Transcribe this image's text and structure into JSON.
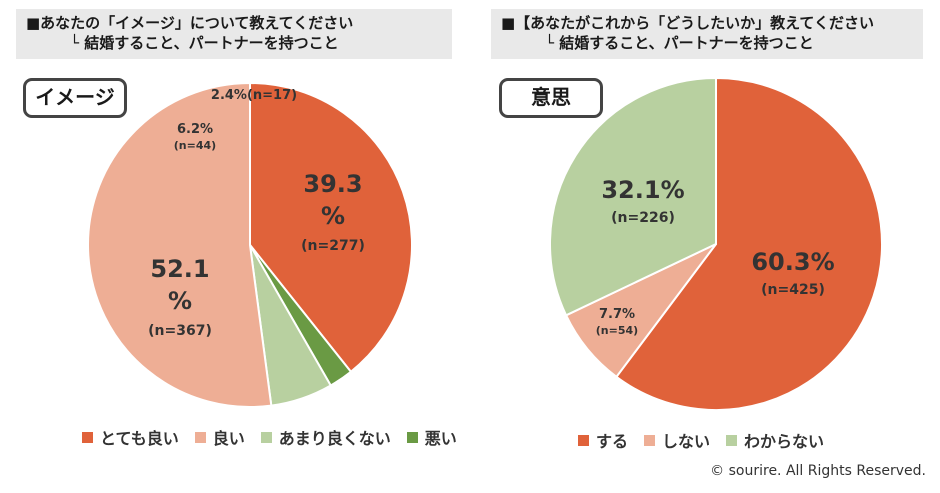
{
  "left_panel": {
    "question_line1": "■あなたの「イメージ」について教えてください",
    "question_line2": "└ 結婚すること、パートナーを持つこと",
    "tag": "イメージ"
  },
  "right_panel": {
    "question_line1": "■【あなたがこれから「どうしたいか」教えてください",
    "question_line2": "└ 結婚すること、パートナーを持つこと",
    "tag": "意思"
  },
  "copyright": "© sourire. All Rights Reserved.",
  "chart_data": [
    {
      "type": "pie",
      "title": "イメージ",
      "slices": [
        {
          "label": "とても良い",
          "value": 39.3,
          "pct": "39.3%",
          "n": "(n=277)",
          "color": "#e0623a"
        },
        {
          "label": "悪い",
          "value": 2.4,
          "pct": "2.4%",
          "n": "(n=17)",
          "color": "#6a9a44"
        },
        {
          "label": "あまり良くない",
          "value": 6.2,
          "pct": "6.2%",
          "n": "(n=44)",
          "color": "#b8d0a0"
        },
        {
          "label": "良い",
          "value": 52.1,
          "pct": "52.1%",
          "n": "(n=367)",
          "color": "#eeae95"
        }
      ],
      "legend": [
        {
          "label": "とても良い",
          "color": "#e0623a"
        },
        {
          "label": "良い",
          "color": "#eeae95"
        },
        {
          "label": "あまり良くない",
          "color": "#b8d0a0"
        },
        {
          "label": "悪い",
          "color": "#6a9a44"
        }
      ],
      "legend_position": "bottom"
    },
    {
      "type": "pie",
      "title": "意思",
      "slices": [
        {
          "label": "する",
          "value": 60.3,
          "pct": "60.3%",
          "n": "(n=425)",
          "color": "#e0623a"
        },
        {
          "label": "しない",
          "value": 7.7,
          "pct": "7.7%",
          "n": "(n=54)",
          "color": "#eeae95"
        },
        {
          "label": "わからない",
          "value": 32.1,
          "pct": "32.1%",
          "n": "(n=226)",
          "color": "#b8d0a0"
        }
      ],
      "legend": [
        {
          "label": "する",
          "color": "#e0623a"
        },
        {
          "label": "しない",
          "color": "#eeae95"
        },
        {
          "label": "わからない",
          "color": "#b8d0a0"
        }
      ],
      "legend_position": "bottom"
    }
  ]
}
